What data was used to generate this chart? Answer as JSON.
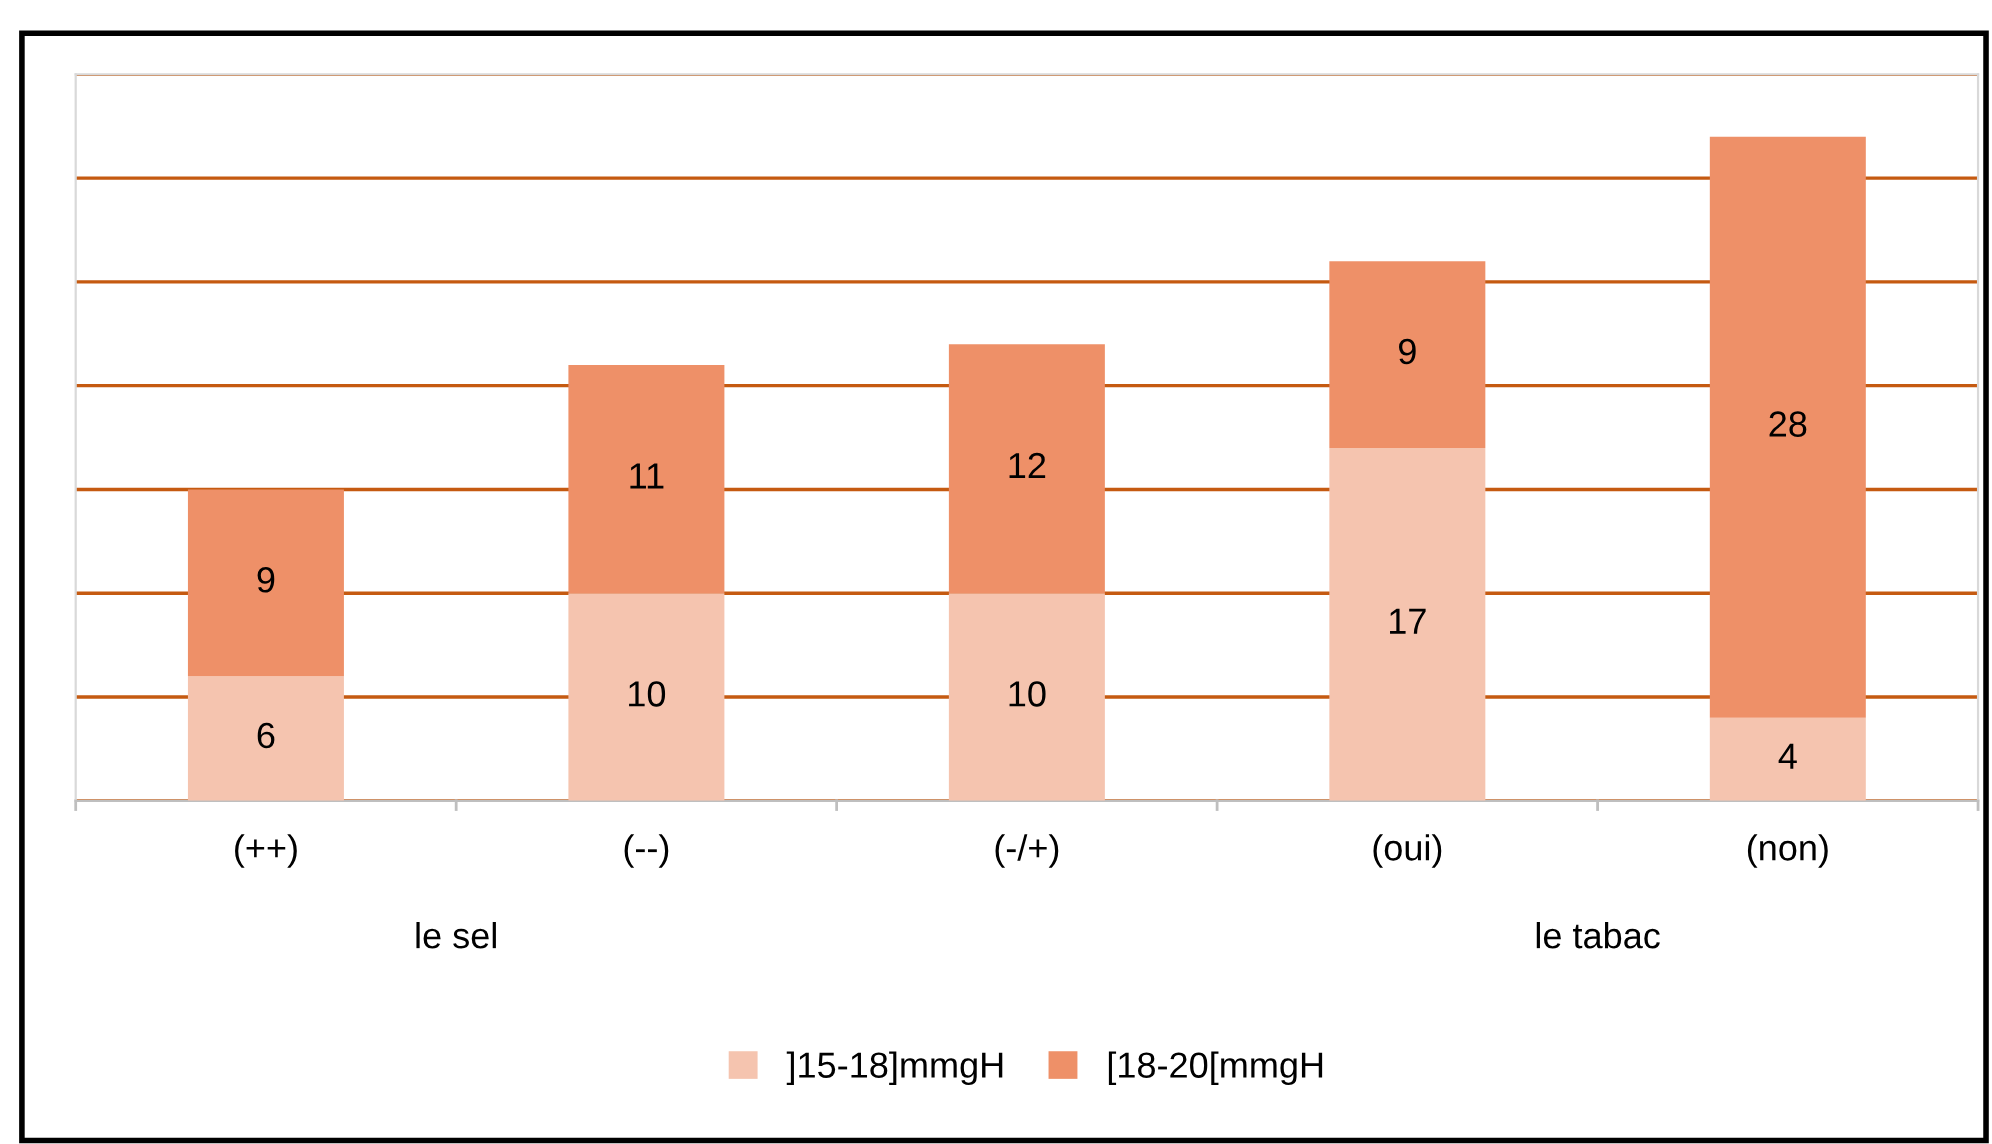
{
  "chart_data": {
    "type": "bar",
    "stacked": true,
    "categories": [
      "(++)",
      "(--)",
      "(-/+)",
      "(oui)",
      "(non)"
    ],
    "series": [
      {
        "name": "]15-18]mmgH",
        "color": "#f5c4af",
        "values": [
          6,
          10,
          10,
          17,
          4
        ]
      },
      {
        "name": "[18-20[mmgH",
        "color": "#ee9068",
        "values": [
          9,
          11,
          12,
          9,
          28
        ]
      }
    ],
    "annotations": [
      "le sel",
      "le tabac"
    ],
    "ylim": [
      0,
      35
    ],
    "yticks": [
      {
        "value": 0,
        "label": null
      },
      {
        "value": 5,
        "label": null
      },
      {
        "value": 10,
        "label": null
      },
      {
        "value": 15,
        "label": null
      },
      {
        "value": 20,
        "label": null
      },
      {
        "value": 25,
        "label": null
      },
      {
        "value": 30,
        "label": null
      },
      {
        "value": 35,
        "label": null
      }
    ],
    "grid": "y",
    "data_labels": true,
    "legend": "bottom",
    "tick_labels": "x"
  }
}
